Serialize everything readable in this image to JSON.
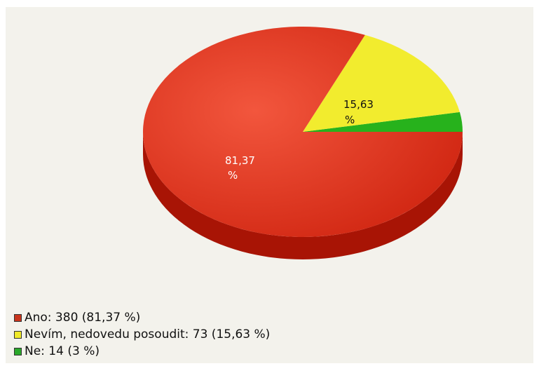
{
  "chart_data": {
    "type": "pie",
    "title": "",
    "slices": [
      {
        "label": "Ano",
        "value": 380,
        "percent_text": "81,37 %",
        "color": "#d42a12",
        "side_color": "#a81405"
      },
      {
        "label": "Nevím, nedovedu posoudit",
        "value": 73,
        "percent_text": "15,63 %",
        "color": "#f2ec2e",
        "side_color": "#c9bf10"
      },
      {
        "label": "Ne",
        "value": 14,
        "percent_text": "3 %",
        "color": "#27b21c",
        "side_color": "#168a10"
      }
    ],
    "slice_labels": [
      {
        "number": "81,37",
        "unit": "%"
      },
      {
        "number": "15,63",
        "unit": "%"
      }
    ],
    "legend": [
      {
        "text": "Ano: 380 (81,37 %)",
        "color": "#c8341c"
      },
      {
        "text": "Nevím, nedovedu posoudit: 73 (15,63 %)",
        "color": "#f0ea2a"
      },
      {
        "text": "Ne: 14 (3 %)",
        "color": "#2aa82a"
      }
    ],
    "legend_placement": "bottom-left"
  }
}
